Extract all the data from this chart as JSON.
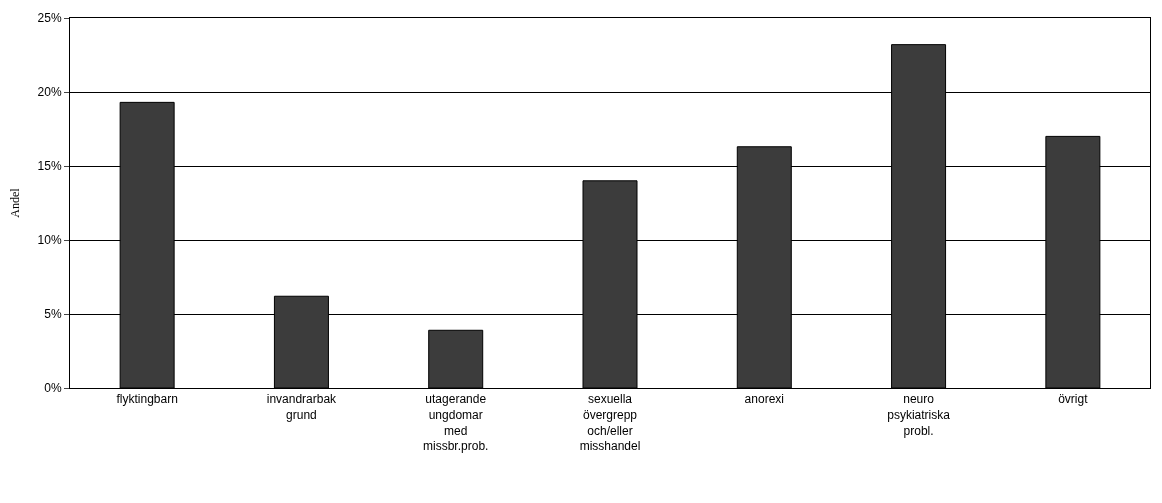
{
  "chart_data": {
    "type": "bar",
    "ylabel": "Andel",
    "categories": [
      "flyktingbarn",
      "invandrarbak\ngrund",
      "utagerande\nungdomar\nmed\nmissbr.prob.",
      "sexuella\növergrepp\noch/eller\nmisshandel",
      "anorexi",
      "neuro\npsykiatriska\nprobl.",
      "övrigt"
    ],
    "values": [
      19.3,
      6.2,
      3.9,
      14.0,
      16.3,
      23.2,
      17.0
    ],
    "color": "#3c3c3c",
    "ylim": [
      0,
      25
    ],
    "yticks": [
      {
        "value": 0,
        "label": "0%"
      },
      {
        "value": 5,
        "label": "5%"
      },
      {
        "value": 10,
        "label": "10%"
      },
      {
        "value": 15,
        "label": "15%"
      },
      {
        "value": 20,
        "label": "20%"
      },
      {
        "value": 25,
        "label": "25%"
      }
    ],
    "grid": "y"
  }
}
